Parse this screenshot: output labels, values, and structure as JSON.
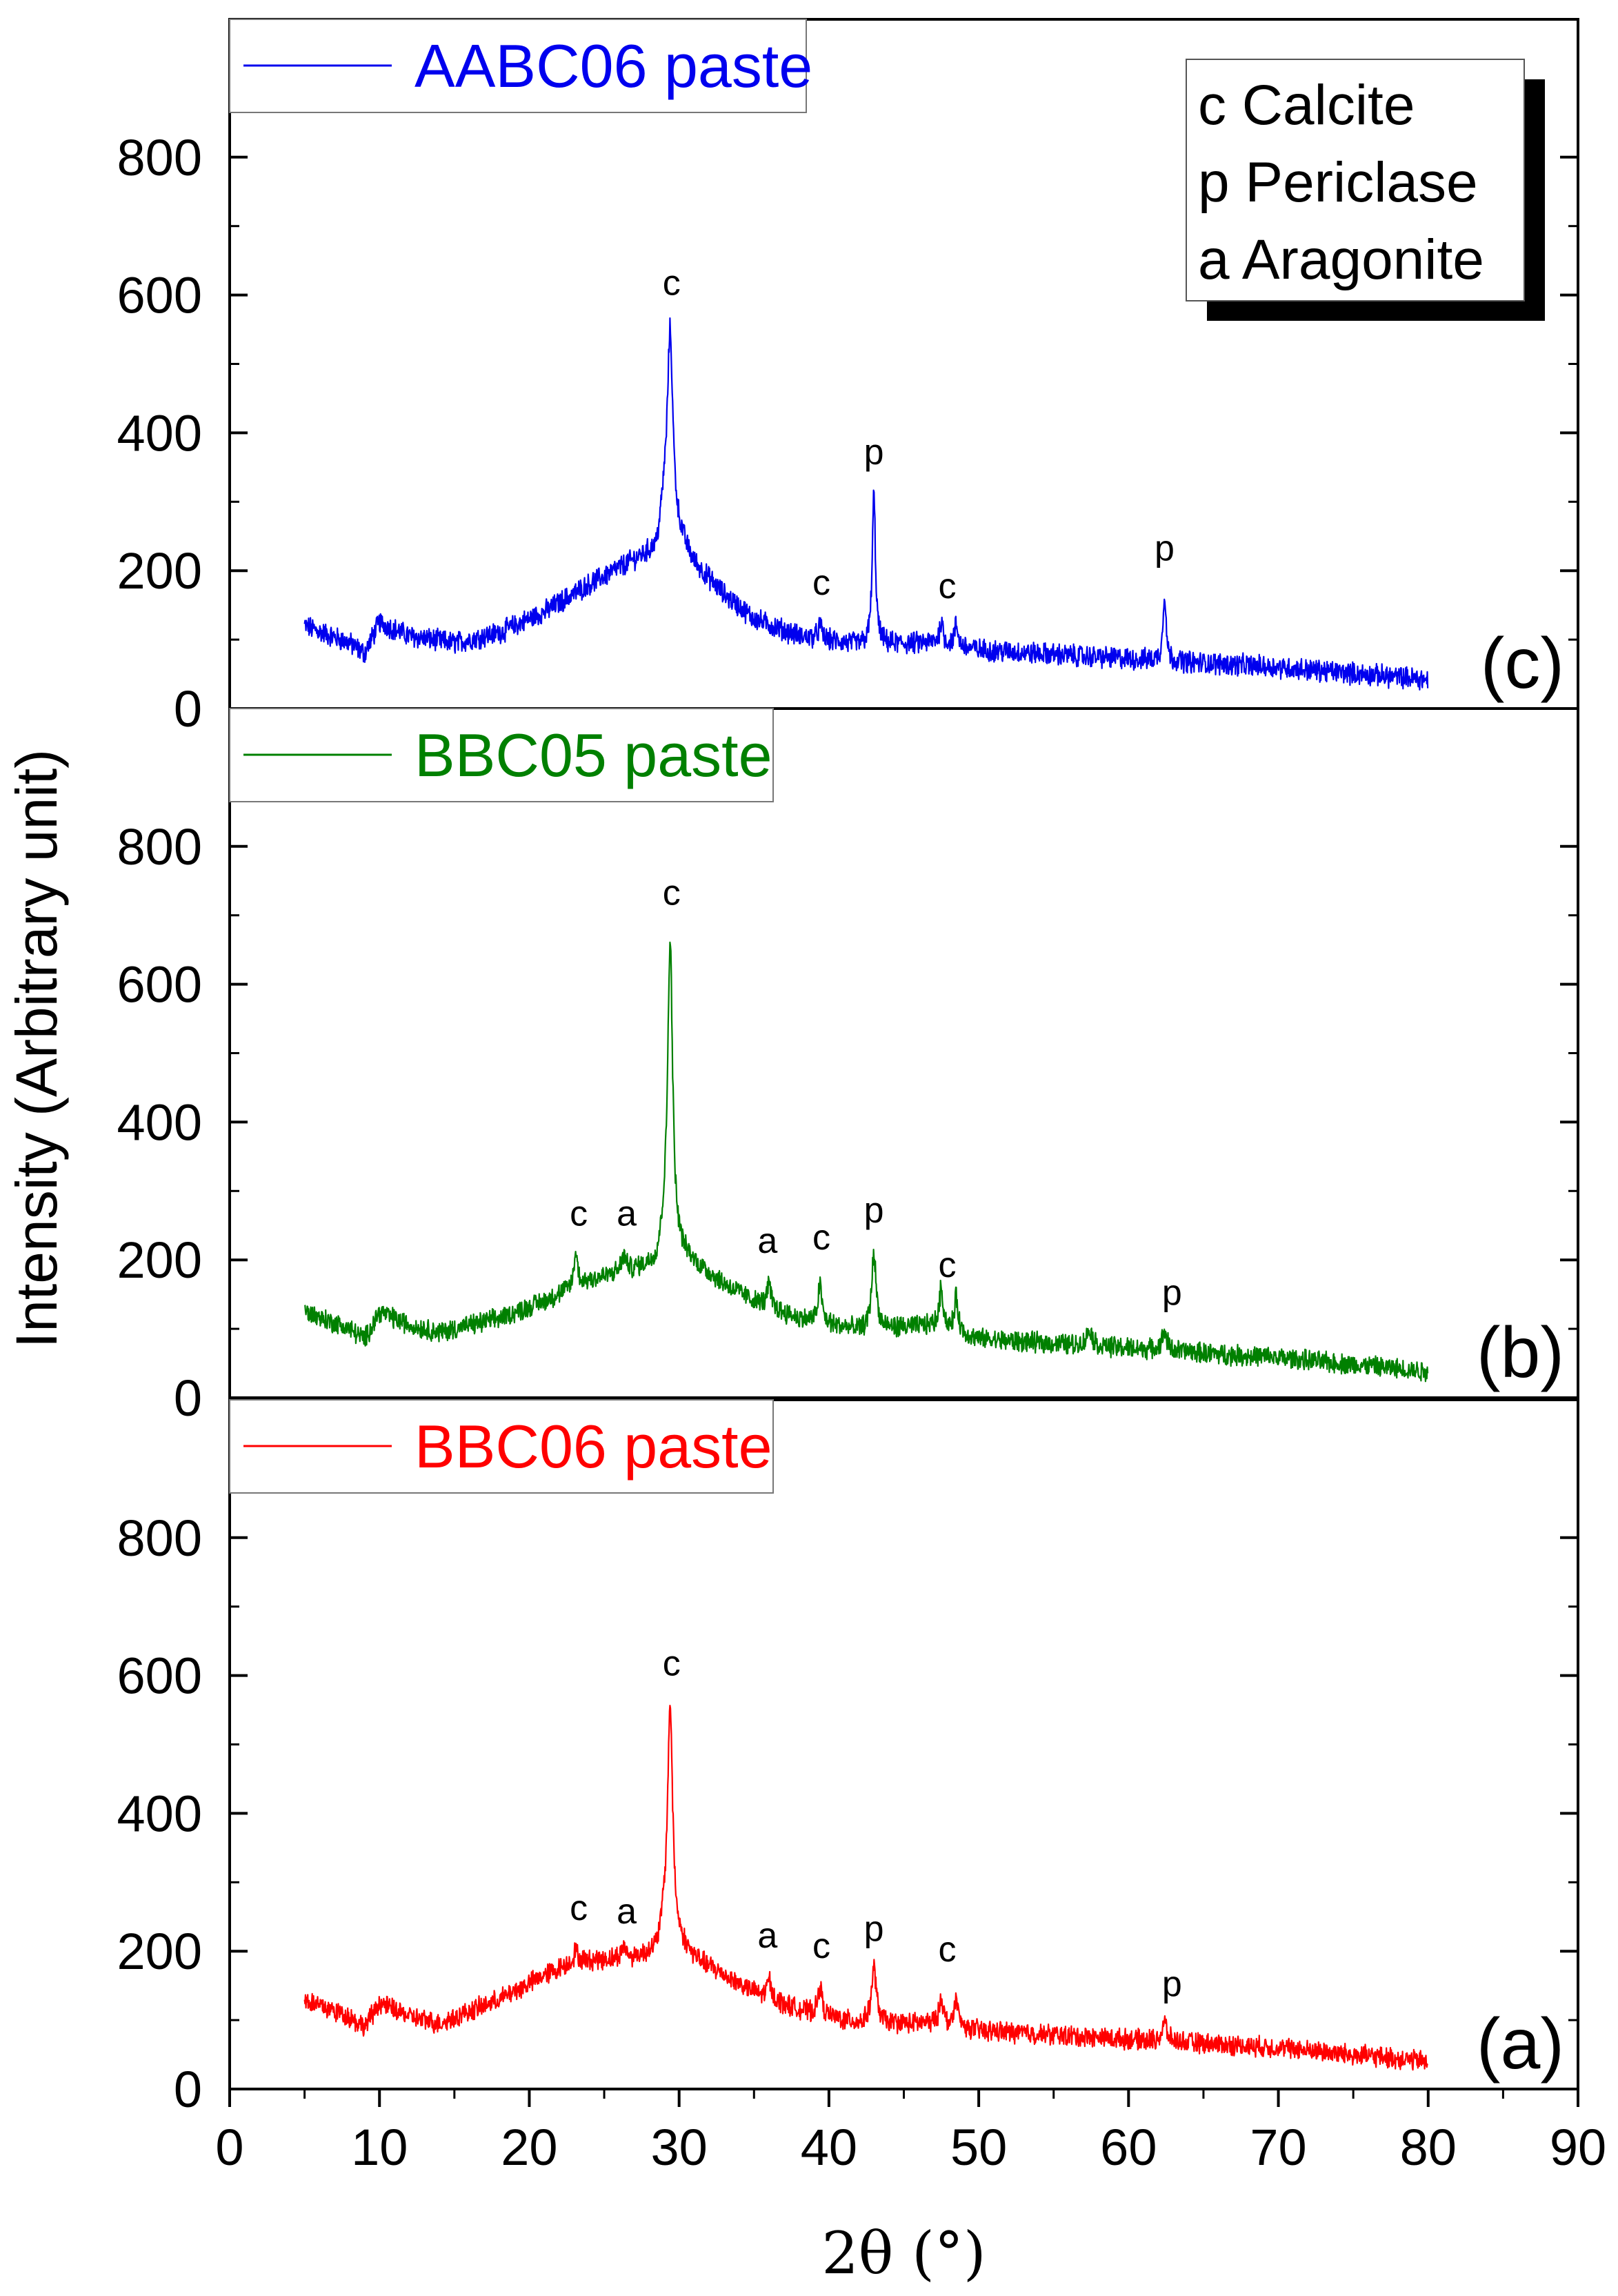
{
  "chart_data": {
    "type": "line",
    "ylabel": "Intensity (Arbitrary unit)",
    "xlabel": "2θ (°)",
    "xlim": [
      0,
      90
    ],
    "x_ticks": [
      "0",
      "10",
      "20",
      "30",
      "40",
      "50",
      "60",
      "70",
      "80",
      "90"
    ],
    "ylim": [
      0,
      1000
    ],
    "y_ticks": [
      "0",
      "200",
      "400",
      "600",
      "800"
    ],
    "phase_legend": [
      "c Calcite",
      "p Periclase",
      "a Aragonite"
    ],
    "panels": [
      {
        "id": "c",
        "panel_label": "(c)",
        "series_name": "AABC06 paste",
        "color": "#0000ee",
        "x_range": [
          5,
          80
        ],
        "background": [
          [
            5,
            120
          ],
          [
            8,
            95
          ],
          [
            9,
            80
          ],
          [
            10,
            125
          ],
          [
            12,
            105
          ],
          [
            15,
            95
          ],
          [
            18,
            110
          ],
          [
            21,
            140
          ],
          [
            24,
            180
          ],
          [
            27,
            215
          ],
          [
            28.5,
            230
          ],
          [
            29,
            290
          ],
          [
            31,
            210
          ],
          [
            33,
            165
          ],
          [
            35,
            130
          ],
          [
            38,
            105
          ],
          [
            42,
            92
          ],
          [
            47,
            95
          ],
          [
            50,
            85
          ],
          [
            60,
            72
          ],
          [
            70,
            60
          ],
          [
            80,
            42
          ]
        ],
        "peaks": [
          {
            "x": 29.4,
            "y": 550,
            "w": 0.22
          },
          {
            "x": 39.4,
            "y": 120,
            "w": 0.15
          },
          {
            "x": 43.0,
            "y": 310,
            "w": 0.13
          },
          {
            "x": 47.5,
            "y": 125,
            "w": 0.15
          },
          {
            "x": 48.5,
            "y": 120,
            "w": 0.15
          },
          {
            "x": 62.4,
            "y": 170,
            "w": 0.12
          }
        ],
        "noise": 14,
        "peak_labels": [
          {
            "x": 29.5,
            "y": 600,
            "text": "c"
          },
          {
            "x": 39.5,
            "y": 165,
            "text": "c"
          },
          {
            "x": 43.0,
            "y": 355,
            "text": "p"
          },
          {
            "x": 47.9,
            "y": 160,
            "text": "c"
          },
          {
            "x": 62.4,
            "y": 215,
            "text": "p"
          }
        ]
      },
      {
        "id": "b",
        "panel_label": "(b)",
        "series_name": "BBC05 paste",
        "color": "#008000",
        "x_range": [
          5,
          80
        ],
        "background": [
          [
            5,
            125
          ],
          [
            8,
            100
          ],
          [
            9,
            85
          ],
          [
            10,
            125
          ],
          [
            12,
            105
          ],
          [
            14,
            95
          ],
          [
            18,
            115
          ],
          [
            21,
            140
          ],
          [
            24,
            170
          ],
          [
            27,
            185
          ],
          [
            28.5,
            195
          ],
          [
            29,
            230
          ],
          [
            31,
            195
          ],
          [
            33,
            165
          ],
          [
            35,
            140
          ],
          [
            38,
            115
          ],
          [
            42,
            98
          ],
          [
            47,
            105
          ],
          [
            50,
            85
          ],
          [
            60,
            72
          ],
          [
            70,
            58
          ],
          [
            80,
            38
          ]
        ],
        "peaks": [
          {
            "x": 23.1,
            "y": 210,
            "w": 0.15
          },
          {
            "x": 26.3,
            "y": 205,
            "w": 0.2
          },
          {
            "x": 29.4,
            "y": 665,
            "w": 0.2
          },
          {
            "x": 36.0,
            "y": 165,
            "w": 0.15
          },
          {
            "x": 39.4,
            "y": 165,
            "w": 0.15
          },
          {
            "x": 43.0,
            "y": 210,
            "w": 0.18
          },
          {
            "x": 47.5,
            "y": 160,
            "w": 0.15
          },
          {
            "x": 48.5,
            "y": 145,
            "w": 0.15
          },
          {
            "x": 57.4,
            "y": 100,
            "w": 0.2
          },
          {
            "x": 62.4,
            "y": 95,
            "w": 0.2
          }
        ],
        "noise": 13,
        "peak_labels": [
          {
            "x": 23.3,
            "y": 250,
            "text": "c"
          },
          {
            "x": 26.5,
            "y": 250,
            "text": "a"
          },
          {
            "x": 29.5,
            "y": 715,
            "text": "c"
          },
          {
            "x": 35.9,
            "y": 210,
            "text": "a"
          },
          {
            "x": 39.5,
            "y": 215,
            "text": "c"
          },
          {
            "x": 43.0,
            "y": 255,
            "text": "p"
          },
          {
            "x": 47.9,
            "y": 175,
            "text": "c"
          },
          {
            "x": 62.9,
            "y": 135,
            "text": "p"
          }
        ]
      },
      {
        "id": "a",
        "panel_label": "(a)",
        "series_name": "BBC06 paste",
        "color": "#ff0000",
        "x_range": [
          5,
          80
        ],
        "background": [
          [
            5,
            130
          ],
          [
            8,
            105
          ],
          [
            9,
            90
          ],
          [
            10,
            125
          ],
          [
            12,
            105
          ],
          [
            14,
            95
          ],
          [
            18,
            130
          ],
          [
            21,
            165
          ],
          [
            23,
            185
          ],
          [
            27,
            190
          ],
          [
            28.5,
            200
          ],
          [
            29,
            235
          ],
          [
            31,
            190
          ],
          [
            33,
            165
          ],
          [
            35,
            140
          ],
          [
            38,
            115
          ],
          [
            42,
            95
          ],
          [
            47,
            95
          ],
          [
            50,
            85
          ],
          [
            60,
            72
          ],
          [
            70,
            60
          ],
          [
            80,
            40
          ]
        ],
        "peaks": [
          {
            "x": 23.1,
            "y": 200,
            "w": 0.15
          },
          {
            "x": 26.3,
            "y": 205,
            "w": 0.2
          },
          {
            "x": 29.4,
            "y": 560,
            "w": 0.2
          },
          {
            "x": 36.0,
            "y": 160,
            "w": 0.15
          },
          {
            "x": 39.4,
            "y": 150,
            "w": 0.15
          },
          {
            "x": 43.0,
            "y": 175,
            "w": 0.2
          },
          {
            "x": 47.5,
            "y": 135,
            "w": 0.15
          },
          {
            "x": 48.5,
            "y": 130,
            "w": 0.15
          },
          {
            "x": 62.4,
            "y": 95,
            "w": 0.2
          }
        ],
        "noise": 13,
        "peak_labels": [
          {
            "x": 23.3,
            "y": 245,
            "text": "c"
          },
          {
            "x": 26.5,
            "y": 240,
            "text": "a"
          },
          {
            "x": 29.5,
            "y": 600,
            "text": "c"
          },
          {
            "x": 35.9,
            "y": 205,
            "text": "a"
          },
          {
            "x": 39.5,
            "y": 190,
            "text": "c"
          },
          {
            "x": 43.0,
            "y": 215,
            "text": "p"
          },
          {
            "x": 47.9,
            "y": 185,
            "text": "c"
          },
          {
            "x": 62.9,
            "y": 135,
            "text": "p"
          }
        ]
      }
    ]
  }
}
